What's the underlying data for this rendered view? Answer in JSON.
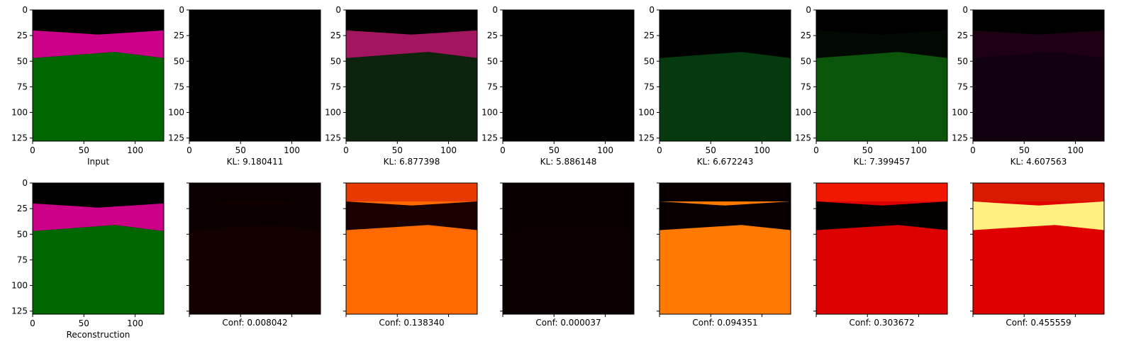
{
  "chart_data": {
    "type": "image-grid",
    "axis": {
      "ticks": [
        0,
        50,
        100
      ],
      "y_ticks": [
        0,
        25,
        50,
        75,
        100,
        125
      ],
      "range": [
        0,
        128
      ]
    },
    "panels_top": [
      {
        "id": "input",
        "caption": "Input",
        "kind": "segmap",
        "top_band": "#cc0088",
        "bottom_band": "#006600",
        "band_edges": [
          20,
          46,
          48
        ]
      },
      {
        "id": "comp1",
        "caption": "KL: 9.180411",
        "kind": "dark",
        "bg": "#000000",
        "band_color": "#000000",
        "ground_color": "#000000"
      },
      {
        "id": "comp2",
        "caption": "KL: 6.877398",
        "kind": "segmap",
        "top_band": "#a3165f",
        "bottom_band": "#0b240b",
        "band_edges": [
          20,
          46,
          48
        ]
      },
      {
        "id": "comp3",
        "caption": "KL: 5.886148",
        "kind": "dark",
        "bg": "#000000",
        "band_color": "#000000",
        "ground_color": "#000000"
      },
      {
        "id": "comp4",
        "caption": "KL: 6.672243",
        "kind": "segmap",
        "top_band": "#000000",
        "bottom_band": "#053a0e",
        "band_edges": [
          20,
          46,
          48
        ]
      },
      {
        "id": "comp5",
        "caption": "KL: 7.399457",
        "kind": "segmap",
        "top_band": "#020902",
        "bottom_band": "#0b550b",
        "band_edges": [
          20,
          46,
          48
        ]
      },
      {
        "id": "comp6",
        "caption": "KL: 4.607563",
        "kind": "segmap",
        "top_band": "#1d0012",
        "bottom_band": "#11000d",
        "band_edges": [
          20,
          46,
          48
        ]
      }
    ],
    "panels_bottom": [
      {
        "id": "recon",
        "caption": "Reconstruction",
        "kind": "segmap",
        "top_band": "#cc0088",
        "bottom_band": "#006600",
        "band_edges": [
          20,
          46,
          48
        ]
      },
      {
        "id": "conf1",
        "caption": "Conf: 0.008042",
        "kind": "heat",
        "sky": "#0a0000",
        "band": "#0a0000",
        "ground": "#120000"
      },
      {
        "id": "conf2",
        "caption": "Conf: 0.138340",
        "kind": "heat",
        "sky": "#e63a00",
        "band": "#1a0000",
        "ground": "#ff6a00"
      },
      {
        "id": "conf3",
        "caption": "Conf: 0.000037",
        "kind": "heat",
        "sky": "#080000",
        "band": "#080000",
        "ground": "#0b0000"
      },
      {
        "id": "conf4",
        "caption": "Conf: 0.094351",
        "kind": "heat",
        "sky": "#080000",
        "band": "#080000",
        "ground": "#ff7a00"
      },
      {
        "id": "conf5",
        "caption": "Conf: 0.303672",
        "kind": "heat",
        "sky": "#f01800",
        "band": "#050000",
        "ground": "#dd0000"
      },
      {
        "id": "conf6",
        "caption": "Conf: 0.455559",
        "kind": "heat",
        "sky": "#d91a00",
        "band": "#fff080",
        "ground": "#e00000"
      }
    ]
  }
}
